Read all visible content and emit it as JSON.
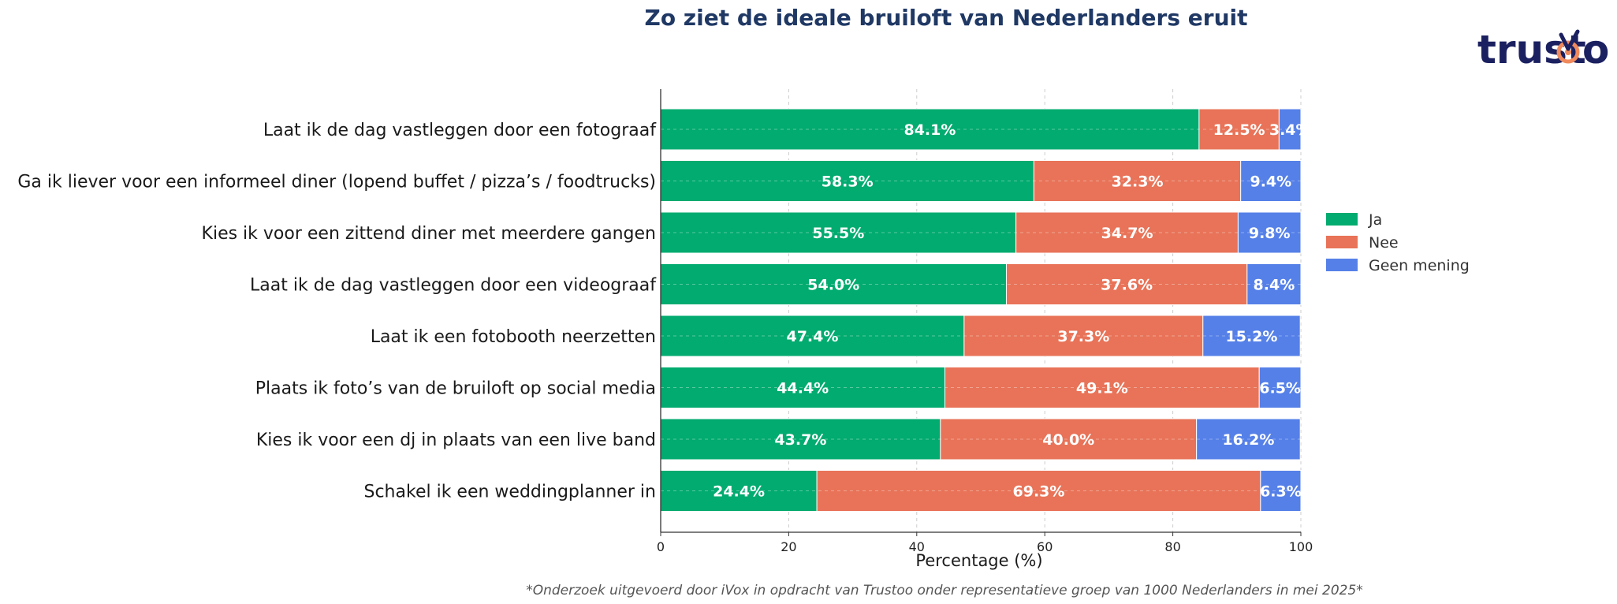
{
  "brand": {
    "logo_text": "trustoo"
  },
  "colors": {
    "ja": "#02ab6f",
    "nee": "#e87358",
    "geen": "#5580e8",
    "title": "#1f3864",
    "logo": "#1b2060",
    "logo_accent": "#f08a5d"
  },
  "chart_data": {
    "type": "bar",
    "orientation": "horizontal",
    "stacked": true,
    "title": "Zo ziet de ideale bruiloft van Nederlanders eruit",
    "xlabel": "Percentage (%)",
    "ylabel": "",
    "xlim": [
      0,
      100
    ],
    "xticks": [
      "0",
      "20",
      "40",
      "60",
      "80",
      "100"
    ],
    "grid": true,
    "legend_position": "right",
    "categories": [
      "Laat ik de dag vastleggen door een fotograaf",
      "Ga ik liever voor een informeel diner (lopend buffet / pizza’s / foodtrucks)",
      "Kies ik voor een zittend diner met meerdere gangen",
      "Laat ik de dag vastleggen door een videograaf",
      "Laat ik een fotobooth neerzetten",
      "Plaats ik foto’s van de bruiloft op social media",
      "Kies ik voor een dj in plaats van een live band",
      "Schakel ik een weddingplanner in"
    ],
    "series": [
      {
        "name": "Ja",
        "values": [
          84.1,
          58.3,
          55.5,
          54.0,
          47.4,
          44.4,
          43.7,
          24.4
        ]
      },
      {
        "name": "Nee",
        "values": [
          12.5,
          32.3,
          34.7,
          37.6,
          37.3,
          49.1,
          40.0,
          69.3
        ]
      },
      {
        "name": "Geen mening",
        "values": [
          3.4,
          9.4,
          9.8,
          8.4,
          15.2,
          6.5,
          16.2,
          6.3
        ]
      }
    ],
    "footnote": "*Onderzoek uitgevoerd door iVox in opdracht van Trustoo onder representatieve groep van 1000 Nederlanders in mei 2025*"
  }
}
